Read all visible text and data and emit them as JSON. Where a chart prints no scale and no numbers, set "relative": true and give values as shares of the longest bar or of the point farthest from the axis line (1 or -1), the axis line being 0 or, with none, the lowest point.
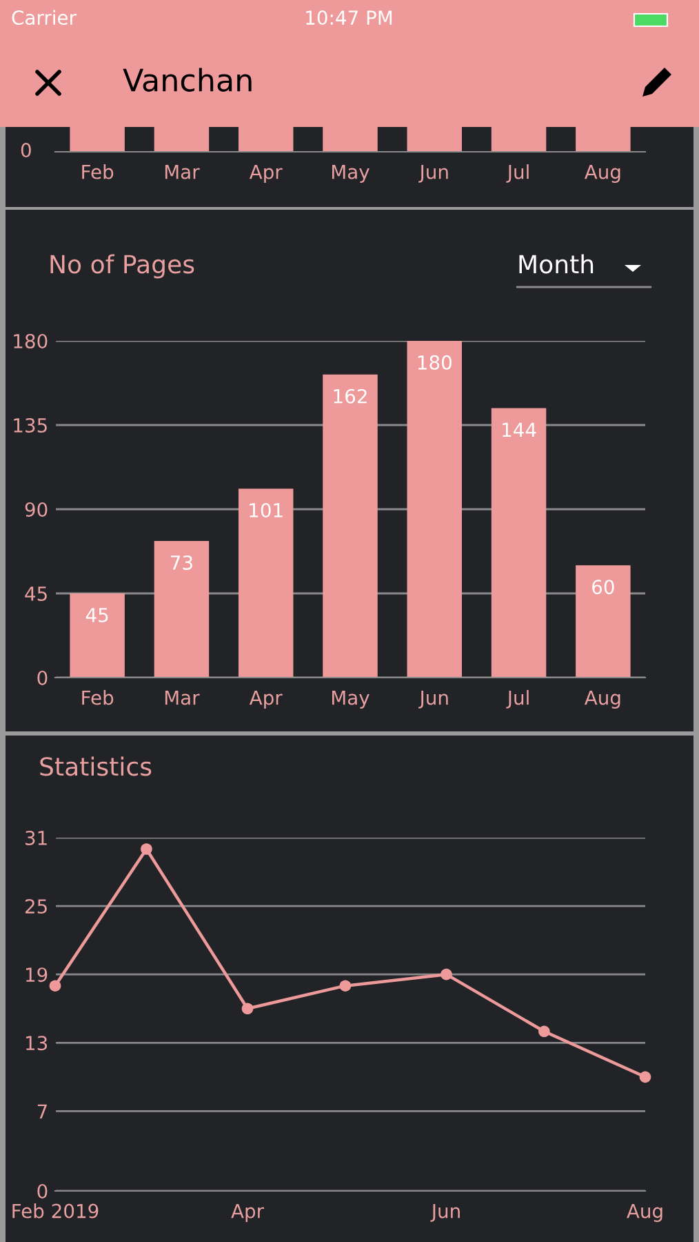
{
  "chart_data": [
    {
      "type": "bar",
      "categories": [
        "Feb",
        "Mar",
        "Apr",
        "May",
        "Jun",
        "Jul",
        "Aug"
      ],
      "values": [
        1,
        1,
        1,
        1,
        1,
        1,
        1
      ],
      "relative": true,
      "color": "#ee9a9a",
      "tick_labels": "x",
      "grid": false,
      "annotations": [
        "Carrier",
        "10:47 PM",
        "Vanchan",
        "0"
      ]
    },
    {
      "type": "bar",
      "title": "No of Pages",
      "categories": [
        "Feb",
        "Mar",
        "Apr",
        "May",
        "Jun",
        "Jul",
        "Aug"
      ],
      "values": [
        45,
        73,
        101,
        162,
        180,
        144,
        60
      ],
      "color": "#ee9a9a",
      "ylim": [
        0,
        180
      ],
      "yticks": [
        0,
        45,
        90,
        135,
        180
      ],
      "grid": "y",
      "data_labels": true,
      "annotations": [
        "Month"
      ]
    },
    {
      "type": "line",
      "title": "Statistics",
      "x": [
        "2019-02",
        "2019-03",
        "2019-04",
        "2019-05",
        "2019-06",
        "2019-07",
        "2019-08"
      ],
      "values": [
        18,
        30,
        16,
        18,
        19,
        14,
        10
      ],
      "color": "#ee9a9a",
      "marker": "circle",
      "line_style": "solid",
      "xlim": [
        "2019-02",
        "2019-08"
      ],
      "xticks": [
        {
          "value": "2019-02",
          "label": "Feb 2019"
        },
        {
          "value": "2019-04",
          "label": "Apr"
        },
        {
          "value": "2019-06",
          "label": "Jun"
        },
        {
          "value": "2019-08",
          "label": "Aug"
        }
      ],
      "ylim": [
        0,
        31
      ],
      "yticks": [
        0,
        7,
        13,
        19,
        25,
        31
      ],
      "grid": "y"
    }
  ]
}
